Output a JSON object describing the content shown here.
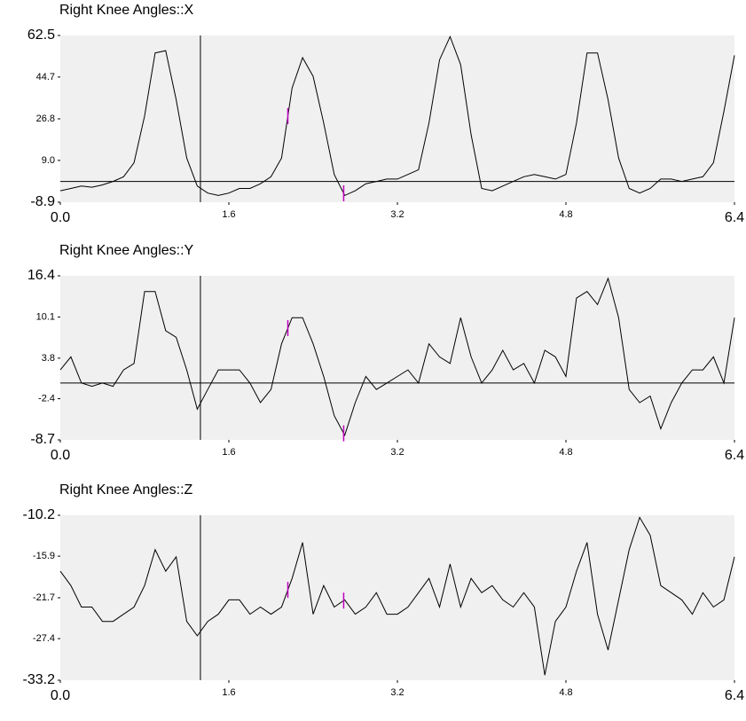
{
  "chart_data": [
    {
      "type": "line",
      "title": "Right Knee Angles::X",
      "color": "#000000",
      "x": [
        0,
        0.1,
        0.2,
        0.3,
        0.4,
        0.5,
        0.6,
        0.7,
        0.8,
        0.9,
        1.0,
        1.1,
        1.2,
        1.3,
        1.4,
        1.5,
        1.6,
        1.7,
        1.8,
        1.9,
        2.0,
        2.1,
        2.2,
        2.3,
        2.4,
        2.5,
        2.6,
        2.7,
        2.8,
        2.9,
        3.0,
        3.1,
        3.2,
        3.3,
        3.4,
        3.5,
        3.6,
        3.7,
        3.8,
        3.9,
        4.0,
        4.1,
        4.2,
        4.3,
        4.4,
        4.5,
        4.6,
        4.7,
        4.8,
        4.9,
        5.0,
        5.1,
        5.2,
        5.3,
        5.4,
        5.5,
        5.6,
        5.7,
        5.8,
        5.9,
        6.0,
        6.1,
        6.2,
        6.3,
        6.4
      ],
      "values": [
        -4,
        -3,
        -2,
        -2.5,
        -1.5,
        0,
        2,
        8,
        28,
        55,
        56,
        35,
        10,
        -2,
        -5,
        -6,
        -5,
        -3,
        -3,
        -1,
        2,
        10,
        40,
        53,
        45,
        25,
        3,
        -6,
        -4,
        -1,
        0,
        1,
        1,
        3,
        5,
        25,
        52,
        62,
        50,
        20,
        -3,
        -4,
        -2,
        0,
        2,
        3,
        2,
        1,
        3,
        25,
        55,
        55,
        35,
        10,
        -3,
        -5,
        -3,
        1,
        1,
        0,
        1,
        2,
        8,
        30,
        54
      ],
      "xlim": [
        0,
        6.4
      ],
      "xticks": [
        {
          "value": 0,
          "label": "0.0"
        },
        1.6,
        3.2,
        4.8,
        6.4
      ],
      "ylim": [
        -8.9,
        62.5
      ],
      "yticks": [
        -8.9,
        {
          "value": 9,
          "label": "9.0"
        },
        26.8,
        44.7,
        62.5
      ],
      "hline": 0,
      "cursor": 1.33,
      "events": [
        2.16,
        2.69
      ]
    },
    {
      "type": "line",
      "title": "Right Knee Angles::Y",
      "color": "#000000",
      "x": [
        0,
        0.1,
        0.2,
        0.3,
        0.4,
        0.5,
        0.6,
        0.7,
        0.8,
        0.9,
        1.0,
        1.1,
        1.2,
        1.3,
        1.4,
        1.5,
        1.6,
        1.7,
        1.8,
        1.9,
        2.0,
        2.1,
        2.2,
        2.3,
        2.4,
        2.5,
        2.6,
        2.7,
        2.8,
        2.9,
        3.0,
        3.1,
        3.2,
        3.3,
        3.4,
        3.5,
        3.6,
        3.7,
        3.8,
        3.9,
        4.0,
        4.1,
        4.2,
        4.3,
        4.4,
        4.5,
        4.6,
        4.7,
        4.8,
        4.9,
        5.0,
        5.1,
        5.2,
        5.3,
        5.4,
        5.5,
        5.6,
        5.7,
        5.8,
        5.9,
        6.0,
        6.1,
        6.2,
        6.3,
        6.4
      ],
      "values": [
        2,
        4,
        0,
        -0.5,
        0,
        -0.5,
        2,
        3,
        14,
        14,
        8,
        7,
        2,
        -4,
        -1,
        2,
        2,
        2,
        0,
        -3,
        -1,
        6,
        10,
        10,
        6,
        1,
        -5,
        -8,
        -3,
        1,
        -1,
        0,
        1,
        2,
        0,
        6,
        4,
        3,
        10,
        4,
        0,
        2,
        5,
        2,
        3,
        0,
        5,
        4,
        1,
        13,
        14,
        12,
        16,
        10,
        -1,
        -3,
        -2,
        -7,
        -3,
        0,
        2,
        2,
        4,
        0,
        10
      ],
      "xlim": [
        0,
        6.4
      ],
      "xticks": [
        {
          "value": 0,
          "label": "0.0"
        },
        1.6,
        3.2,
        4.8,
        6.4
      ],
      "ylim": [
        -8.7,
        16.4
      ],
      "yticks": [
        -8.7,
        -2.4,
        3.8,
        10.1,
        16.4
      ],
      "hline": 0,
      "cursor": 1.33,
      "events": [
        2.16,
        2.69
      ]
    },
    {
      "type": "line",
      "title": "Right Knee Angles::Z",
      "color": "#000000",
      "x": [
        0,
        0.1,
        0.2,
        0.3,
        0.4,
        0.5,
        0.6,
        0.7,
        0.8,
        0.9,
        1.0,
        1.1,
        1.2,
        1.3,
        1.4,
        1.5,
        1.6,
        1.7,
        1.8,
        1.9,
        2.0,
        2.1,
        2.2,
        2.3,
        2.4,
        2.5,
        2.6,
        2.7,
        2.8,
        2.9,
        3.0,
        3.1,
        3.2,
        3.3,
        3.4,
        3.5,
        3.6,
        3.7,
        3.8,
        3.9,
        4.0,
        4.1,
        4.2,
        4.3,
        4.4,
        4.5,
        4.6,
        4.7,
        4.8,
        4.9,
        5.0,
        5.1,
        5.2,
        5.3,
        5.4,
        5.5,
        5.6,
        5.7,
        5.8,
        5.9,
        6.0,
        6.1,
        6.2,
        6.3,
        6.4
      ],
      "values": [
        -18,
        -20,
        -23,
        -23,
        -25,
        -25,
        -24,
        -23,
        -20,
        -15,
        -18,
        -16,
        -25,
        -27,
        -25,
        -24,
        -22,
        -22,
        -24,
        -23,
        -24,
        -23,
        -19,
        -14,
        -24,
        -20,
        -23,
        -22,
        -24,
        -23,
        -21,
        -24,
        -24,
        -23,
        -21,
        -19,
        -23,
        -17,
        -23,
        -19,
        -21,
        -20,
        -22,
        -23,
        -21,
        -23,
        -32.5,
        -25,
        -23,
        -18,
        -14,
        -24,
        -29,
        -22,
        -15,
        -10.5,
        -13,
        -20,
        -21,
        -22,
        -24,
        -21,
        -23,
        -22,
        -16
      ],
      "xlim": [
        0,
        6.4
      ],
      "xticks": [
        {
          "value": 0,
          "label": "0.0"
        },
        1.6,
        3.2,
        4.8,
        6.4
      ],
      "ylim": [
        -33.2,
        -10.2
      ],
      "yticks": [
        -33.2,
        -27.4,
        -21.7,
        -15.9,
        -10.2
      ],
      "cursor": 1.33,
      "events": [
        2.16,
        2.69
      ]
    }
  ]
}
